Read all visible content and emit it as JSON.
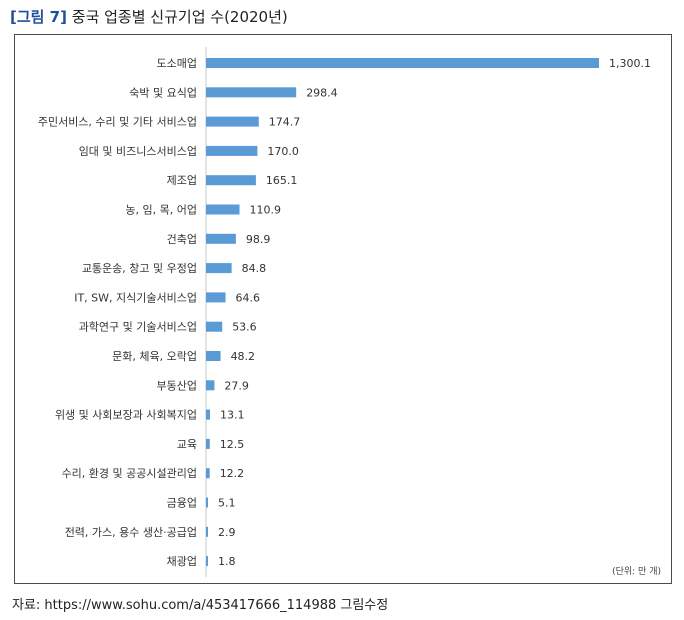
{
  "figure": {
    "number": "[그림 7]",
    "title": "중국 업종별 신규기업 수(2020년)"
  },
  "unit_note": "(단위: 만 개)",
  "source": "자료: https://www.sohu.com/a/453417666_114988 그림수정",
  "colors": {
    "bar": "#5b9bd5",
    "axis": "#c8c8c8",
    "title_accent": "#1f4e9c"
  },
  "chart_data": {
    "type": "bar",
    "orientation": "horizontal",
    "categories": [
      "도소매업",
      "숙박 및 요식업",
      "주민서비스, 수리 및 기타 서비스업",
      "임대 및 비즈니스서비스업",
      "제조업",
      "농, 임, 목, 어업",
      "건축업",
      "교통운송, 창고 및 우정업",
      "IT, SW, 지식기술서비스업",
      "과학연구 및 기술서비스업",
      "문화, 체육, 오락업",
      "부동산업",
      "위생 및 사회보장과 사회복지업",
      "교육",
      "수리, 환경 및 공공시설관리업",
      "금융업",
      "전력, 가스, 용수 생산·공급업",
      "채광업"
    ],
    "values": [
      1300.1,
      298.4,
      174.7,
      170.0,
      165.1,
      110.9,
      98.9,
      84.8,
      64.6,
      53.6,
      48.2,
      27.9,
      13.1,
      12.5,
      12.2,
      5.1,
      2.9,
      1.8
    ],
    "data_labels": [
      "1,300.1",
      "298.4",
      "174.7",
      "170.0",
      "165.1",
      "110.9",
      "98.9",
      "84.8",
      "64.6",
      "53.6",
      "48.2",
      "27.9",
      "13.1",
      "12.5",
      "12.2",
      "5.1",
      "2.9",
      "1.8"
    ],
    "xlim": [
      0,
      1300.1
    ],
    "grid": false,
    "legend": "none"
  }
}
